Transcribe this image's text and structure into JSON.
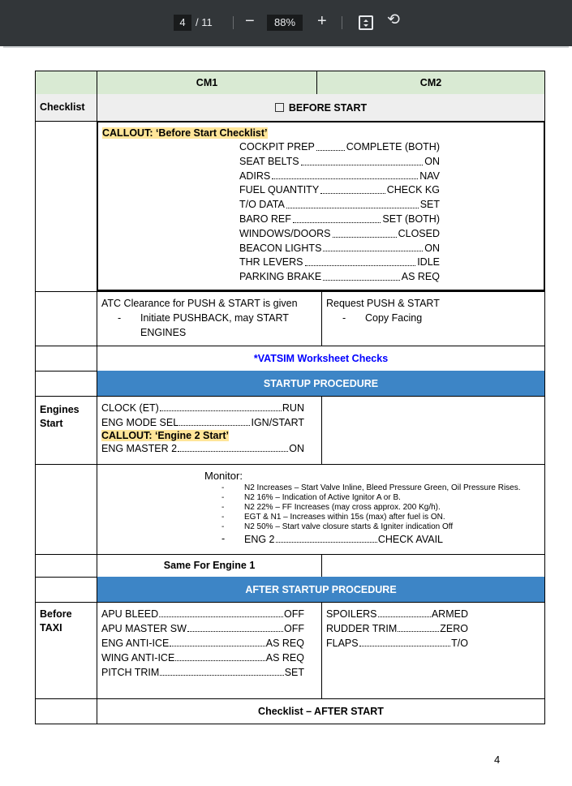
{
  "viewer": {
    "page_current": "4",
    "page_total": "/ 11",
    "zoom": "88%",
    "minus": "−",
    "plus": "+"
  },
  "header": {
    "cm1": "CM1",
    "cm2": "CM2"
  },
  "checklist_row": {
    "label": "Checklist",
    "title": "BEFORE START"
  },
  "before_start": {
    "callout": "CALLOUT: ‘Before Start Checklist’",
    "items": [
      {
        "label": "COCKPIT PREP",
        "value": "COMPLETE (BOTH)"
      },
      {
        "label": "SEAT BELTS",
        "value": "ON"
      },
      {
        "label": "ADIRS",
        "value": "NAV"
      },
      {
        "label": "FUEL QUANTITY",
        "value": "CHECK KG"
      },
      {
        "label": "T/O DATA",
        "value": "SET"
      },
      {
        "label": "BARO REF",
        "value": "SET (BOTH)"
      },
      {
        "label": "WINDOWS/DOORS",
        "value": "CLOSED"
      },
      {
        "label": "BEACON LIGHTS",
        "value": "ON"
      },
      {
        "label": "THR LEVERS",
        "value": "IDLE"
      },
      {
        "label": "PARKING BRAKE",
        "value": "AS REQ"
      }
    ]
  },
  "atc": {
    "cm1_text": "ATC Clearance for PUSH & START is given",
    "cm1_sub": "Initiate PUSHBACK, may START ENGINES",
    "cm2_text": "Request PUSH & START",
    "cm2_sub": "Copy Facing"
  },
  "vatsim": "*VATSIM Worksheet Checks",
  "startup": {
    "title": "STARTUP PROCEDURE",
    "label": "Engines Start",
    "items": [
      {
        "label": "CLOCK (ET)",
        "value": "RUN"
      },
      {
        "label": "ENG MODE SEL",
        "value": "IGN/START"
      }
    ],
    "callout": "CALLOUT: ‘Engine 2 Start’",
    "item_after": {
      "label": "ENG MASTER 2",
      "value": "ON"
    }
  },
  "monitor": {
    "title": "Monitor:",
    "items": [
      "N2 Increases – Start Valve Inline, Bleed Pressure Green, Oil Pressure Rises.",
      "N2 16% – Indication of Active Ignitor A or B.",
      "N2 22% – FF Increases (may cross approx. 200 Kg/h).",
      "EGT & N1 – Increases within 15s (max) after fuel is ON.",
      "N2 50% – Start valve closure starts & Igniter indication Off"
    ],
    "final": {
      "label": "ENG 2",
      "value": "CHECK AVAIL"
    }
  },
  "same_engine1": "Same For Engine 1",
  "after_startup": {
    "title": "AFTER STARTUP PROCEDURE",
    "label": "Before TAXI",
    "cm1": [
      {
        "label": "APU BLEED",
        "value": "OFF"
      },
      {
        "label": "APU MASTER SW",
        "value": "OFF"
      },
      {
        "label": "ENG ANTI-ICE",
        "value": "AS REQ"
      },
      {
        "label": "WING ANTI-ICE",
        "value": "AS REQ"
      },
      {
        "label": "PITCH TRIM",
        "value": "SET"
      }
    ],
    "cm2": [
      {
        "label": "SPOILERS",
        "value": "ARMED"
      },
      {
        "label": "RUDDER TRIM",
        "value": "ZERO"
      },
      {
        "label": "FLAPS",
        "value": "T/O"
      }
    ]
  },
  "after_start_checklist": "Checklist – AFTER START",
  "page_number": "4",
  "colors": {
    "header_green": "#d9ead3",
    "section_blue": "#3d85c6",
    "callout_highlight": "#ffe599",
    "vatsim_link": "#0000ff"
  }
}
